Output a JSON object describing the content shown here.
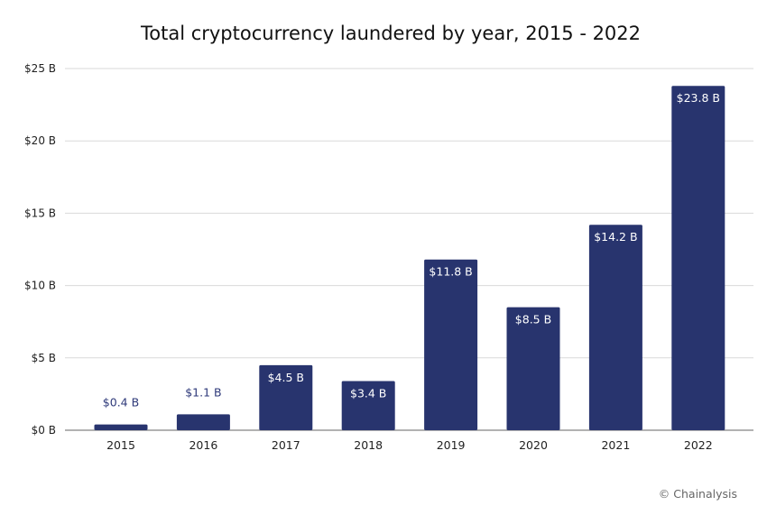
{
  "chart_data": {
    "type": "bar",
    "title": "Total cryptocurrency laundered by year, 2015 - 2022",
    "xlabel": "",
    "ylabel": "",
    "categories": [
      "2015",
      "2016",
      "2017",
      "2018",
      "2019",
      "2020",
      "2021",
      "2022"
    ],
    "values": [
      0.4,
      1.1,
      4.5,
      3.4,
      11.8,
      8.5,
      14.2,
      23.8
    ],
    "data_labels": [
      "$0.4 B",
      "$1.1 B",
      "$4.5 B",
      "$3.4 B",
      "$11.8 B",
      "$8.5 B",
      "$14.2 B",
      "$23.8 B"
    ],
    "ylim": [
      0,
      25
    ],
    "yticks": [
      0,
      5,
      10,
      15,
      20,
      25
    ],
    "ytick_labels": [
      "$0 B",
      "$5 B",
      "$10 B",
      "$15 B",
      "$20 B",
      "$25 B"
    ],
    "grid": true,
    "legend": "none",
    "bar_color": "#28346e",
    "outside_label_color": "#2f3a7a"
  },
  "credit": "© Chainalysis"
}
